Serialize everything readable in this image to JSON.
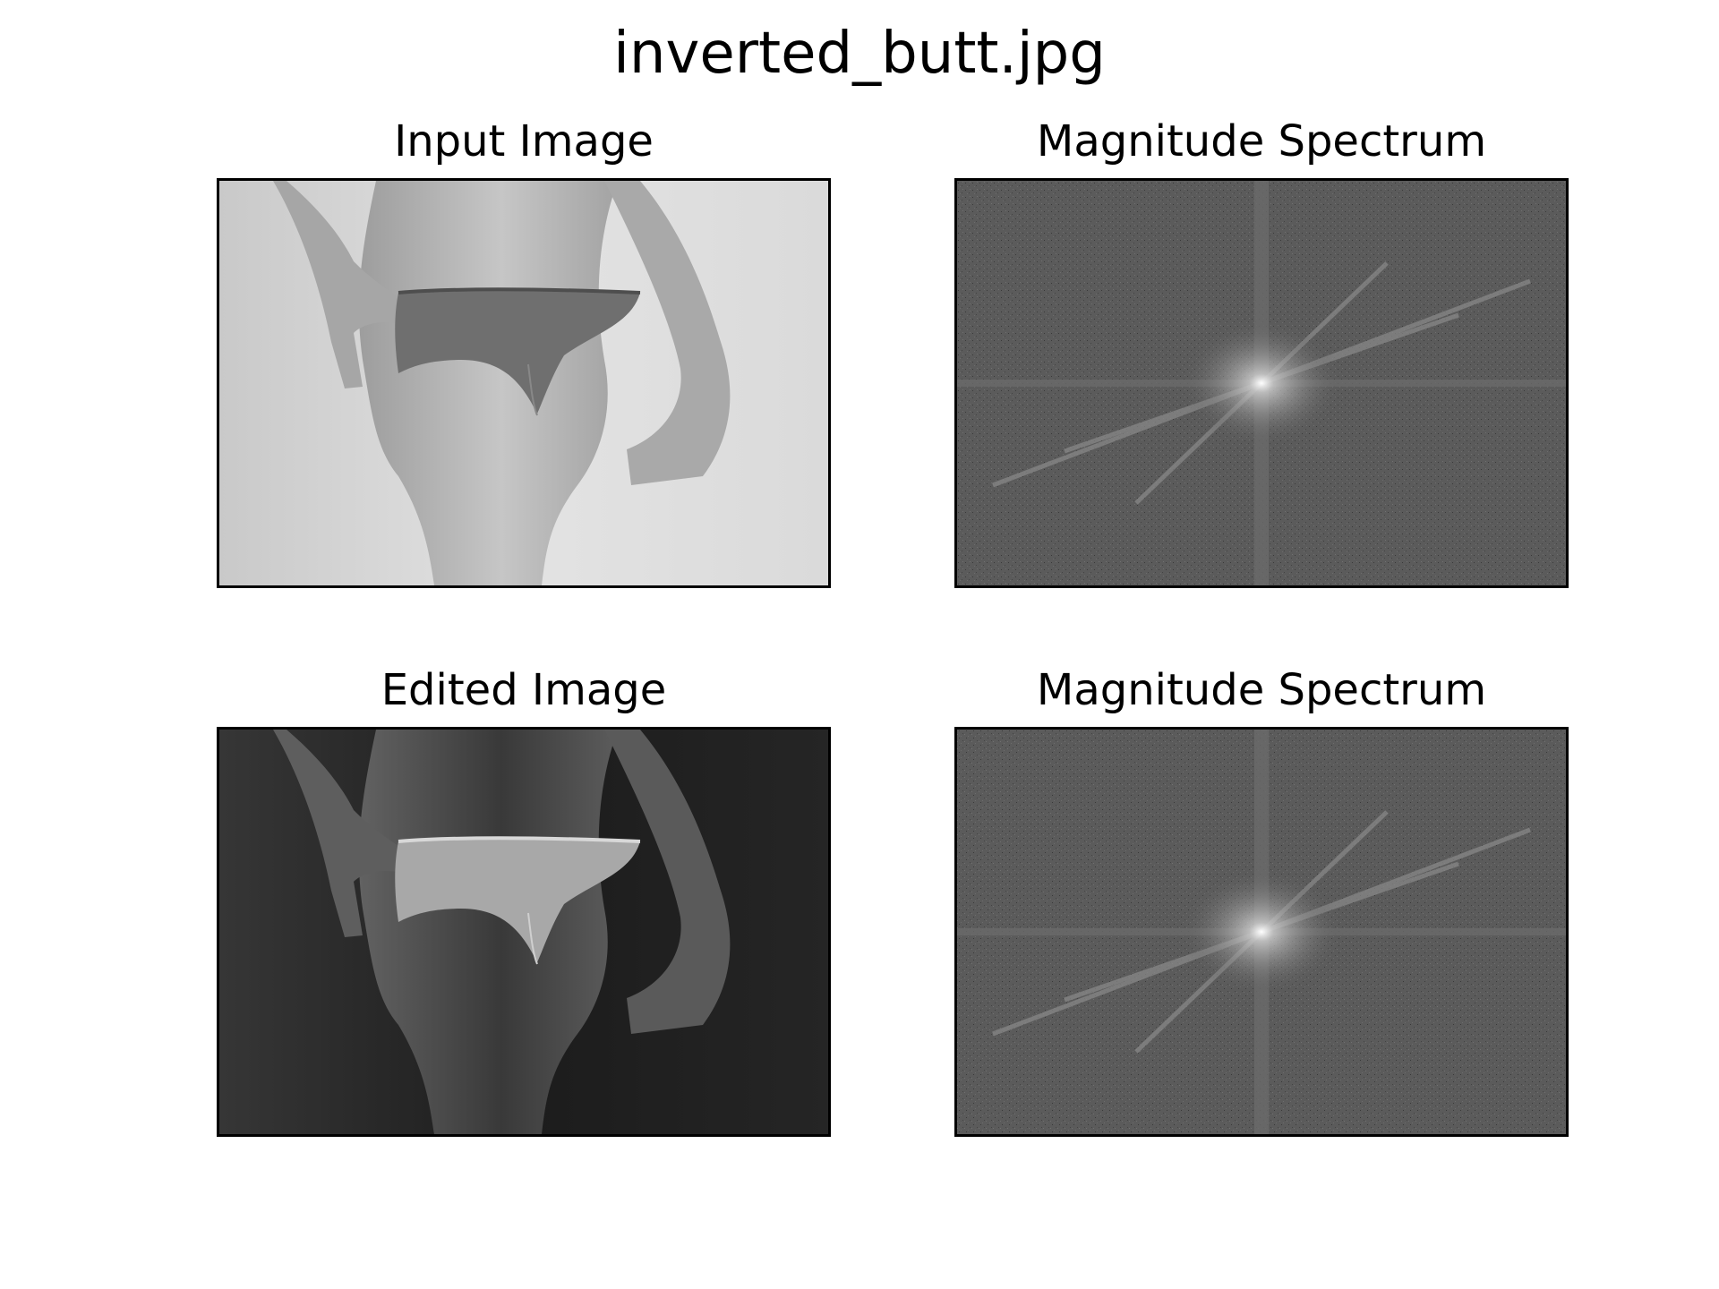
{
  "figure": {
    "title": "inverted_butt.jpg"
  },
  "panels": [
    {
      "title": "Input Image",
      "kind": "grayscale-photo",
      "background": "#dcdcdc"
    },
    {
      "title": "Magnitude Spectrum",
      "kind": "fft-magnitude",
      "background": "#5a5a5a"
    },
    {
      "title": "Edited Image",
      "kind": "inverted-grayscale-photo",
      "background": "#232323"
    },
    {
      "title": "Magnitude Spectrum",
      "kind": "fft-magnitude",
      "background": "#5a5a5a"
    }
  ]
}
